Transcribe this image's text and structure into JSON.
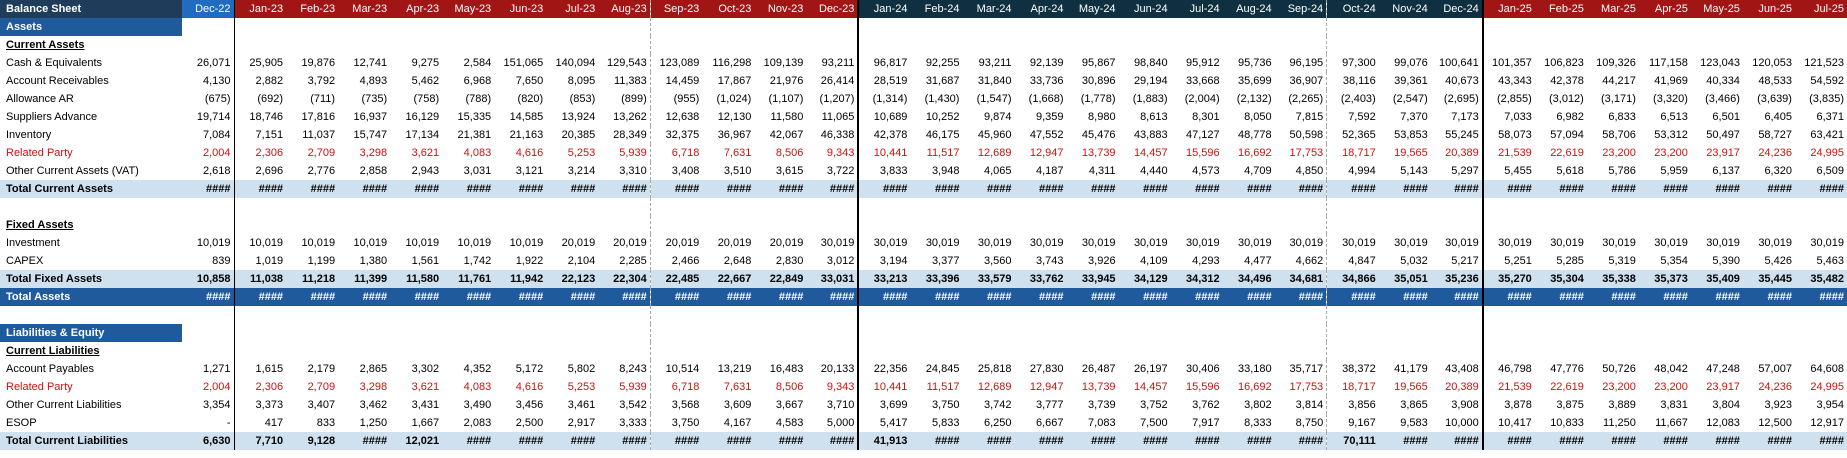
{
  "sheet_title": "Balance Sheet",
  "months": [
    "Dec-22",
    "Jan-23",
    "Feb-23",
    "Mar-23",
    "Apr-23",
    "May-23",
    "Jun-23",
    "Jul-23",
    "Aug-23",
    "Sep-23",
    "Oct-23",
    "Nov-23",
    "Dec-23",
    "Jan-24",
    "Feb-24",
    "Mar-24",
    "Apr-24",
    "May-24",
    "Jun-24",
    "Jul-24",
    "Aug-24",
    "Sep-24",
    "Oct-24",
    "Nov-24",
    "Dec-24",
    "Jan-25",
    "Feb-25",
    "Mar-25",
    "Apr-25",
    "May-25",
    "Jun-25",
    "Jul-25"
  ],
  "colors": {
    "header_dark": "#1f3c5a",
    "header_blue": "#1f6cc1",
    "header_red": "#a11515",
    "header_teal": "#0f3040",
    "section_blue": "#1e5a9c",
    "total_light": "#cfe0ef",
    "negative_red": "#d01010"
  },
  "rows": [
    {
      "label": "Assets",
      "type": "section"
    },
    {
      "label": "Current Assets",
      "type": "subhead"
    },
    {
      "label": "Cash & Equivalents",
      "type": "data",
      "values": [
        "26,071",
        "25,905",
        "19,876",
        "12,741",
        "9,275",
        "2,584",
        "151,065",
        "140,094",
        "129,543",
        "123,089",
        "116,298",
        "109,139",
        "93,211",
        "96,817",
        "92,255",
        "93,211",
        "92,139",
        "95,867",
        "98,840",
        "95,912",
        "95,736",
        "96,195",
        "97,300",
        "99,076",
        "100,641",
        "101,357",
        "106,823",
        "109,326",
        "117,158",
        "123,043",
        "120,053",
        "121,523"
      ]
    },
    {
      "label": "Account Receivables",
      "type": "data",
      "values": [
        "4,130",
        "2,882",
        "3,792",
        "4,893",
        "5,462",
        "6,968",
        "7,650",
        "8,095",
        "11,383",
        "14,459",
        "17,867",
        "21,976",
        "26,414",
        "28,519",
        "31,687",
        "31,840",
        "33,736",
        "30,896",
        "29,194",
        "33,668",
        "35,699",
        "36,907",
        "38,116",
        "39,361",
        "40,673",
        "43,343",
        "42,378",
        "44,217",
        "41,969",
        "40,334",
        "48,533",
        "54,592"
      ]
    },
    {
      "label": "Allowance AR",
      "type": "data",
      "values": [
        "(675)",
        "(692)",
        "(711)",
        "(735)",
        "(758)",
        "(788)",
        "(820)",
        "(853)",
        "(899)",
        "(955)",
        "(1,024)",
        "(1,107)",
        "(1,207)",
        "(1,314)",
        "(1,430)",
        "(1,547)",
        "(1,668)",
        "(1,778)",
        "(1,883)",
        "(2,004)",
        "(2,132)",
        "(2,265)",
        "(2,403)",
        "(2,547)",
        "(2,695)",
        "(2,855)",
        "(3,012)",
        "(3,171)",
        "(3,320)",
        "(3,466)",
        "(3,639)",
        "(3,835)"
      ]
    },
    {
      "label": "Suppliers Advance",
      "type": "data",
      "values": [
        "19,714",
        "18,746",
        "17,816",
        "16,937",
        "16,129",
        "15,335",
        "14,585",
        "13,924",
        "13,262",
        "12,638",
        "12,130",
        "11,580",
        "11,065",
        "10,689",
        "10,252",
        "9,874",
        "9,359",
        "8,980",
        "8,613",
        "8,301",
        "8,050",
        "7,815",
        "7,592",
        "7,370",
        "7,173",
        "7,033",
        "6,982",
        "6,833",
        "6,513",
        "6,501",
        "6,405",
        "6,371"
      ]
    },
    {
      "label": "Inventory",
      "type": "data",
      "values": [
        "7,084",
        "7,151",
        "11,037",
        "15,747",
        "17,134",
        "21,381",
        "21,163",
        "20,385",
        "28,349",
        "32,375",
        "36,967",
        "42,067",
        "46,338",
        "42,378",
        "46,175",
        "45,960",
        "47,552",
        "45,476",
        "43,883",
        "47,127",
        "48,778",
        "50,598",
        "52,365",
        "53,853",
        "55,245",
        "58,073",
        "57,094",
        "58,706",
        "53,312",
        "50,497",
        "58,727",
        "63,421"
      ]
    },
    {
      "label": "Related Party",
      "type": "data",
      "red": true,
      "values": [
        "2,004",
        "2,306",
        "2,709",
        "3,298",
        "3,621",
        "4,083",
        "4,616",
        "5,253",
        "5,939",
        "6,718",
        "7,631",
        "8,506",
        "9,343",
        "10,441",
        "11,517",
        "12,689",
        "12,947",
        "13,739",
        "14,457",
        "15,596",
        "16,692",
        "17,753",
        "18,717",
        "19,565",
        "20,389",
        "21,539",
        "22,619",
        "23,200",
        "23,200",
        "23,917",
        "24,236",
        "24,995"
      ]
    },
    {
      "label": "Other Current Assets (VAT)",
      "type": "data",
      "values": [
        "2,618",
        "2,696",
        "2,776",
        "2,858",
        "2,943",
        "3,031",
        "3,121",
        "3,214",
        "3,310",
        "3,408",
        "3,510",
        "3,615",
        "3,722",
        "3,833",
        "3,948",
        "4,065",
        "4,187",
        "4,311",
        "4,440",
        "4,573",
        "4,709",
        "4,850",
        "4,994",
        "5,143",
        "5,297",
        "5,455",
        "5,618",
        "5,786",
        "5,959",
        "6,137",
        "6,320",
        "6,509"
      ]
    },
    {
      "label": "Total Current Assets",
      "type": "total_light",
      "values": [
        "####",
        "####",
        "####",
        "####",
        "####",
        "####",
        "####",
        "####",
        "####",
        "####",
        "####",
        "####",
        "####",
        "####",
        "####",
        "####",
        "####",
        "####",
        "####",
        "####",
        "####",
        "####",
        "####",
        "####",
        "####",
        "####",
        "####",
        "####",
        "####",
        "####",
        "####",
        "####"
      ]
    },
    {
      "label": "",
      "type": "blank"
    },
    {
      "label": "Fixed Assets",
      "type": "subhead"
    },
    {
      "label": "Investment",
      "type": "data",
      "values": [
        "10,019",
        "10,019",
        "10,019",
        "10,019",
        "10,019",
        "10,019",
        "10,019",
        "20,019",
        "20,019",
        "20,019",
        "20,019",
        "20,019",
        "30,019",
        "30,019",
        "30,019",
        "30,019",
        "30,019",
        "30,019",
        "30,019",
        "30,019",
        "30,019",
        "30,019",
        "30,019",
        "30,019",
        "30,019",
        "30,019",
        "30,019",
        "30,019",
        "30,019",
        "30,019",
        "30,019",
        "30,019"
      ]
    },
    {
      "label": "CAPEX",
      "type": "data",
      "values": [
        "839",
        "1,019",
        "1,199",
        "1,380",
        "1,561",
        "1,742",
        "1,922",
        "2,104",
        "2,285",
        "2,466",
        "2,648",
        "2,830",
        "3,012",
        "3,194",
        "3,377",
        "3,560",
        "3,743",
        "3,926",
        "4,109",
        "4,293",
        "4,477",
        "4,662",
        "4,847",
        "5,032",
        "5,217",
        "5,251",
        "5,285",
        "5,319",
        "5,354",
        "5,390",
        "5,426",
        "5,463"
      ]
    },
    {
      "label": "Total Fixed Assets",
      "type": "total_light",
      "values": [
        "10,858",
        "11,038",
        "11,218",
        "11,399",
        "11,580",
        "11,761",
        "11,942",
        "22,123",
        "22,304",
        "22,485",
        "22,667",
        "22,849",
        "33,031",
        "33,213",
        "33,396",
        "33,579",
        "33,762",
        "33,945",
        "34,129",
        "34,312",
        "34,496",
        "34,681",
        "34,866",
        "35,051",
        "35,236",
        "35,270",
        "35,304",
        "35,338",
        "35,373",
        "35,409",
        "35,445",
        "35,482"
      ]
    },
    {
      "label": "Total Assets",
      "type": "total_blue",
      "values": [
        "####",
        "####",
        "####",
        "####",
        "####",
        "####",
        "####",
        "####",
        "####",
        "####",
        "####",
        "####",
        "####",
        "####",
        "####",
        "####",
        "####",
        "####",
        "####",
        "####",
        "####",
        "####",
        "####",
        "####",
        "####",
        "####",
        "####",
        "####",
        "####",
        "####",
        "####",
        "####"
      ]
    },
    {
      "label": "",
      "type": "blank"
    },
    {
      "label": "Liabilities & Equity",
      "type": "section"
    },
    {
      "label": "Current Liabilities",
      "type": "subhead"
    },
    {
      "label": "Account Payables",
      "type": "data",
      "values": [
        "1,271",
        "1,615",
        "2,179",
        "2,865",
        "3,302",
        "4,352",
        "5,172",
        "5,802",
        "8,243",
        "10,514",
        "13,219",
        "16,483",
        "20,133",
        "22,356",
        "24,845",
        "25,818",
        "27,830",
        "26,487",
        "26,197",
        "30,406",
        "33,180",
        "35,717",
        "38,372",
        "41,179",
        "43,408",
        "46,798",
        "47,776",
        "50,726",
        "48,042",
        "47,248",
        "57,007",
        "64,608"
      ]
    },
    {
      "label": "Related Party",
      "type": "data",
      "red": true,
      "values": [
        "2,004",
        "2,306",
        "2,709",
        "3,298",
        "3,621",
        "4,083",
        "4,616",
        "5,253",
        "5,939",
        "6,718",
        "7,631",
        "8,506",
        "9,343",
        "10,441",
        "11,517",
        "12,689",
        "12,947",
        "13,739",
        "14,457",
        "15,596",
        "16,692",
        "17,753",
        "18,717",
        "19,565",
        "20,389",
        "21,539",
        "22,619",
        "23,200",
        "23,200",
        "23,917",
        "24,236",
        "24,995"
      ]
    },
    {
      "label": "Other Current Liabilities",
      "type": "data",
      "values": [
        "3,354",
        "3,373",
        "3,407",
        "3,462",
        "3,431",
        "3,490",
        "3,456",
        "3,461",
        "3,542",
        "3,568",
        "3,609",
        "3,667",
        "3,710",
        "3,699",
        "3,750",
        "3,742",
        "3,777",
        "3,739",
        "3,752",
        "3,762",
        "3,802",
        "3,814",
        "3,856",
        "3,865",
        "3,908",
        "3,878",
        "3,875",
        "3,889",
        "3,831",
        "3,804",
        "3,923",
        "3,954"
      ]
    },
    {
      "label": "ESOP",
      "type": "data",
      "values": [
        "-",
        "417",
        "833",
        "1,250",
        "1,667",
        "2,083",
        "2,500",
        "2,917",
        "3,333",
        "3,750",
        "4,167",
        "4,583",
        "5,000",
        "5,417",
        "5,833",
        "6,250",
        "6,667",
        "7,083",
        "7,500",
        "7,917",
        "8,333",
        "8,750",
        "9,167",
        "9,583",
        "10,000",
        "10,417",
        "10,833",
        "11,250",
        "11,667",
        "12,083",
        "12,500",
        "12,917"
      ]
    },
    {
      "label": "Total Current Liabilities",
      "type": "total_light",
      "values": [
        "6,630",
        "7,710",
        "9,128",
        "####",
        "12,021",
        "####",
        "####",
        "####",
        "####",
        "####",
        "####",
        "####",
        "####",
        "41,913",
        "####",
        "####",
        "####",
        "####",
        "####",
        "####",
        "####",
        "####",
        "70,111",
        "####",
        "####",
        "####",
        "####",
        "####",
        "####",
        "####",
        "####",
        "####"
      ]
    }
  ]
}
